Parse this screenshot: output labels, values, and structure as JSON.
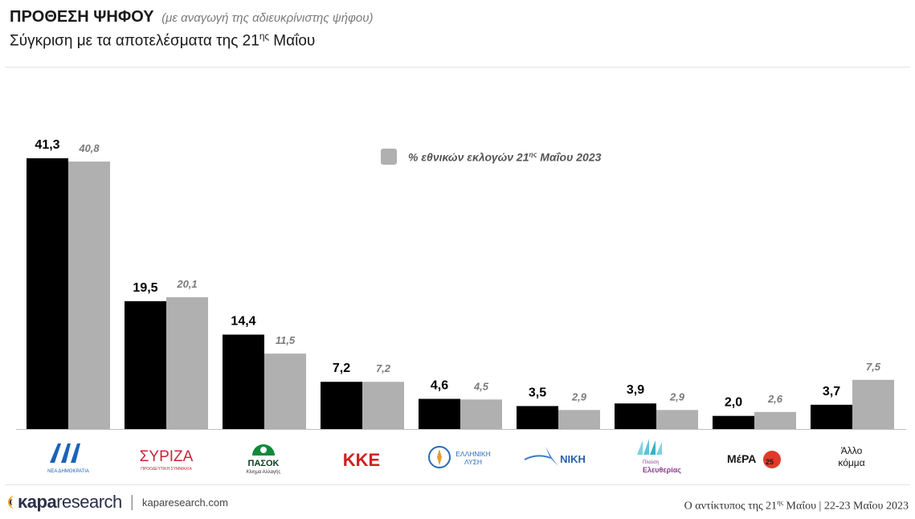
{
  "header": {
    "title": "ΠΡΟΘΕΣΗ ΨΗΦΟΥ",
    "title_note": "(με αναγωγή της αδιευκρίνιστης ψήφου)",
    "subtitle_main": "Σύγκριση με τα αποτελέσματα της 21",
    "subtitle_sup": "ης",
    "subtitle_end": " Μαΐου"
  },
  "legend": {
    "prefix": "% εθνικών εκλογών 21",
    "sup": "ης",
    "suffix": " Μαΐου 2023"
  },
  "logos": {
    "nd_text": "ΝΕΑ ΔΗΜΟΚΡΑΤΙΑ",
    "syriza_text": "ΣΥΡΙΖΑ",
    "syriza_sub": "ΠΡΟΟΔΕΥΤΙΚΗ ΣΥΜΜΑΧΙΑ",
    "pasok_text": "ΠΑΣΟΚ",
    "pasok_sub": "Κίνημα Αλλαγής",
    "kke_text": "ΚΚΕ",
    "el_text_1": "ΕΛΛΗΝΙΚΗ",
    "el_text_2": "ΛΥΣΗ",
    "niki_text": "ΝΙΚΗ",
    "pleusi_text_1": "Πλεύση",
    "pleusi_text_2": "Ελευθερίας",
    "mera_text": "ΜέΡΑ",
    "mera_num": "25",
    "other_1": "Άλλο",
    "other_2": "κόμμα"
  },
  "footer": {
    "brand_bold": "κapa",
    "brand_rest": "research",
    "separator": "|",
    "website": "kaparesearch.com",
    "right_text": "Ο αντίκτυπος της 21",
    "right_sup": "ης",
    "right_rest": " Μαΐου",
    "right_sep": " | ",
    "date": "22-23 Μαΐου 2023"
  },
  "colors": {
    "current": "#000000",
    "previous": "#b0b0b0",
    "axis": "#bfbfbf"
  },
  "chart_data": {
    "type": "bar",
    "categories": [
      "ΝΔ",
      "ΣΥΡΙΖΑ",
      "ΠΑΣΟΚ",
      "ΚΚΕ",
      "Ελληνική Λύση",
      "ΝΙΚΗ",
      "Πλεύση Ελευθερίας",
      "ΜέΡΑ25",
      "Άλλο κόμμα"
    ],
    "series": [
      {
        "values": [
          41.3,
          19.5,
          14.4,
          7.2,
          4.6,
          3.5,
          3.9,
          2.0,
          3.7
        ],
        "labels": [
          "41,3",
          "19,5",
          "14,4",
          "7,2",
          "4,6",
          "3,5",
          "3,9",
          "2,0",
          "3,7"
        ]
      },
      {
        "name": "% εθνικών εκλογών 21ης Μαΐου 2023",
        "values": [
          40.8,
          20.1,
          11.5,
          7.2,
          4.5,
          2.9,
          2.9,
          2.6,
          7.5
        ],
        "labels": [
          "40,8",
          "20,1",
          "11,5",
          "7,2",
          "4,5",
          "2,9",
          "2,9",
          "2,6",
          "7,5"
        ]
      }
    ],
    "xlabel": "",
    "ylabel": "",
    "ylim": [
      0,
      45
    ],
    "grid": false,
    "legend_position": "top-center"
  }
}
